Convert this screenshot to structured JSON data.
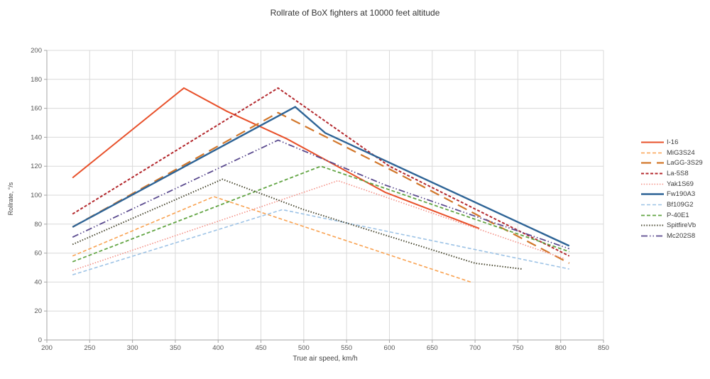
{
  "chart_data": {
    "type": "line",
    "title": "Rollrate of BoX fighters at 10000 feet altitude",
    "xlabel": "True air speed, km/h",
    "ylabel": "Rollrate, °/s",
    "xlim": [
      200,
      850
    ],
    "ylim": [
      0,
      200
    ],
    "xticks": [
      200,
      250,
      300,
      350,
      400,
      450,
      500,
      550,
      600,
      650,
      700,
      750,
      800,
      850
    ],
    "yticks": [
      0,
      20,
      40,
      60,
      80,
      100,
      120,
      140,
      160,
      180,
      200
    ],
    "grid": true,
    "legend_position": "right",
    "grid_color": "#d9d9d9",
    "axis_color": "#a6a6a6",
    "tick_label_color": "#595959",
    "series": [
      {
        "name": "I-16",
        "color": "#e8502a",
        "dash": "solid",
        "width": 2.0,
        "points": [
          [
            230,
            112
          ],
          [
            360,
            174
          ],
          [
            410,
            158
          ],
          [
            480,
            139
          ],
          [
            595,
            102
          ],
          [
            705,
            77
          ]
        ]
      },
      {
        "name": "MiG3S24",
        "color": "#f9a251",
        "dash": "dash",
        "width": 1.6,
        "points": [
          [
            230,
            58
          ],
          [
            395,
            99
          ],
          [
            695,
            40
          ]
        ]
      },
      {
        "name": "LaGG-3S29",
        "color": "#d2772b",
        "dash": "longdash",
        "width": 2.2,
        "points": [
          [
            230,
            78
          ],
          [
            470,
            157
          ],
          [
            610,
            115
          ],
          [
            810,
            53
          ]
        ]
      },
      {
        "name": "La-5S8",
        "color": "#b4292e",
        "dash": "densedash",
        "width": 2.0,
        "points": [
          [
            230,
            87
          ],
          [
            470,
            174
          ],
          [
            600,
            120
          ],
          [
            810,
            58
          ]
        ]
      },
      {
        "name": "Yak1S69",
        "color": "#f49086",
        "dash": "dot",
        "width": 1.6,
        "points": [
          [
            230,
            48
          ],
          [
            540,
            110
          ],
          [
            805,
            56
          ]
        ]
      },
      {
        "name": "Fw190A3",
        "color": "#2e6496",
        "dash": "solid",
        "width": 2.4,
        "points": [
          [
            230,
            78
          ],
          [
            490,
            161
          ],
          [
            525,
            143
          ],
          [
            810,
            65
          ]
        ]
      },
      {
        "name": "Bf109G2",
        "color": "#9dc3e6",
        "dash": "dash",
        "width": 1.6,
        "points": [
          [
            230,
            45
          ],
          [
            475,
            90
          ],
          [
            810,
            49
          ]
        ]
      },
      {
        "name": "P-40E1",
        "color": "#62a544",
        "dash": "dash",
        "width": 1.8,
        "points": [
          [
            230,
            54
          ],
          [
            520,
            120
          ],
          [
            810,
            61
          ]
        ]
      },
      {
        "name": "SpitfireVb",
        "color": "#4b4a33",
        "dash": "dot",
        "width": 2.0,
        "points": [
          [
            230,
            66
          ],
          [
            405,
            111
          ],
          [
            500,
            90
          ],
          [
            700,
            53
          ],
          [
            755,
            49
          ]
        ]
      },
      {
        "name": "Mc202S8",
        "color": "#5b4b8f",
        "dash": "dashdotdot",
        "width": 1.8,
        "points": [
          [
            230,
            71
          ],
          [
            470,
            138
          ],
          [
            595,
            107
          ],
          [
            810,
            63
          ]
        ]
      }
    ]
  }
}
